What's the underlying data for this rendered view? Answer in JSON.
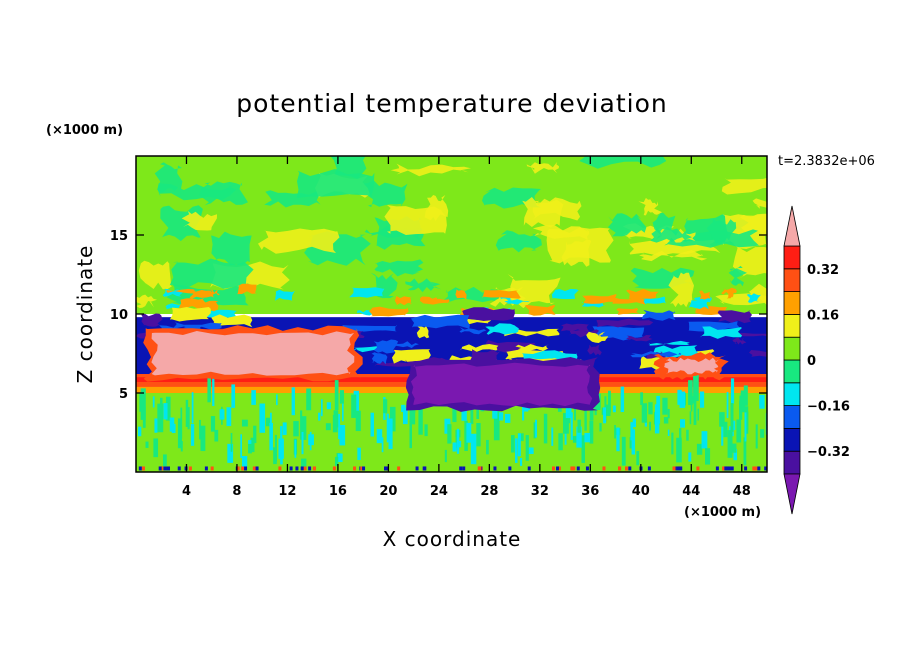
{
  "chart_data": {
    "type": "heatmap",
    "title": "potential temperature deviation",
    "xlabel": "X coordinate",
    "ylabel": "Z coordinate",
    "x_unit": "(×1000 m)",
    "y_unit": "(×1000 m)",
    "time_label": "t=2.3832e+06",
    "xlim": [
      0,
      50
    ],
    "ylim": [
      0,
      20
    ],
    "x_ticks": [
      4,
      8,
      12,
      16,
      20,
      24,
      28,
      32,
      36,
      40,
      44,
      48
    ],
    "y_ticks": [
      5,
      10,
      15
    ],
    "colorbar": {
      "levels": [
        -0.4,
        -0.32,
        -0.24,
        -0.16,
        -0.08,
        0,
        0.08,
        0.16,
        0.24,
        0.32,
        0.4
      ],
      "tick_values": [
        -0.32,
        -0.16,
        0,
        0.16,
        0.32
      ],
      "tick_labels": [
        "−0.32",
        "−0.16",
        "0",
        "0.16",
        "0.32"
      ],
      "colors": [
        "#7a18b0",
        "#4a10a0",
        "#0a14b4",
        "#0a5af0",
        "#00e6f0",
        "#18e880",
        "#7ee81a",
        "#f0f01a",
        "#ffa000",
        "#ff5014",
        "#ff1e14",
        "#f5a8a8"
      ]
    },
    "regions": [
      {
        "name": "upper-layer",
        "z_range": [
          10,
          20
        ],
        "value": 0.06
      },
      {
        "name": "negative-band",
        "z_range": [
          6.2,
          9.8
        ],
        "value": -0.28
      },
      {
        "name": "warm-patch-left",
        "x_range": [
          1.5,
          17
        ],
        "z_range": [
          6.2,
          8.8
        ],
        "value": 0.42
      },
      {
        "name": "warm-patch-right",
        "x_range": [
          42,
          46
        ],
        "z_range": [
          6.3,
          7.1
        ],
        "value": 0.42
      },
      {
        "name": "cold-patch-center",
        "x_range": [
          22,
          36
        ],
        "z_range": [
          4.3,
          6.8
        ],
        "value": -0.42
      },
      {
        "name": "inversion-layer",
        "z_range": [
          5,
          6.2
        ],
        "value": 0.35
      },
      {
        "name": "lower-layer",
        "z_range": [
          0,
          5
        ],
        "value": 0.02
      }
    ]
  }
}
